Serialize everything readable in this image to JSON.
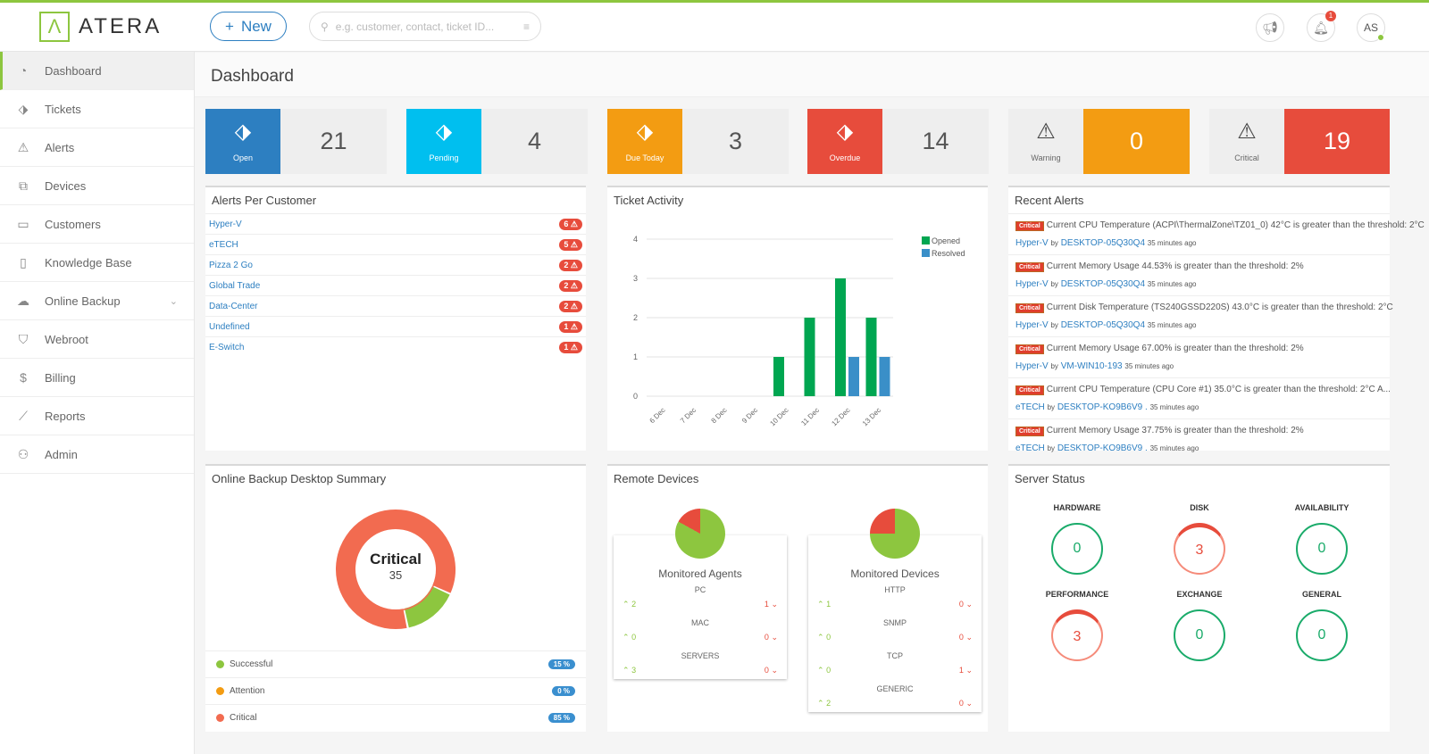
{
  "app": {
    "logo": "ATERA",
    "new_label": "New",
    "search_placeholder": "e.g. customer, contact, ticket ID...",
    "notifications": "1",
    "avatar": "AS"
  },
  "sidebar": {
    "items": [
      {
        "label": "Dashboard",
        "icon": "dashboard-icon"
      },
      {
        "label": "Tickets",
        "icon": "tag-icon"
      },
      {
        "label": "Alerts",
        "icon": "warning-icon"
      },
      {
        "label": "Devices",
        "icon": "devices-icon"
      },
      {
        "label": "Customers",
        "icon": "briefcase-icon"
      },
      {
        "label": "Knowledge Base",
        "icon": "book-icon"
      },
      {
        "label": "Online Backup",
        "icon": "cloud-icon"
      },
      {
        "label": "Webroot",
        "icon": "shield-icon"
      },
      {
        "label": "Billing",
        "icon": "dollar-icon"
      },
      {
        "label": "Reports",
        "icon": "chart-icon"
      },
      {
        "label": "Admin",
        "icon": "user-gear-icon"
      }
    ]
  },
  "page_title": "Dashboard",
  "stats": [
    {
      "label": "Open",
      "value": "21",
      "color": "#2d7fc1"
    },
    {
      "label": "Pending",
      "value": "4",
      "color": "#00bfef"
    },
    {
      "label": "Due Today",
      "value": "3",
      "color": "#f39c12"
    },
    {
      "label": "Overdue",
      "value": "14",
      "color": "#e74c3c"
    },
    {
      "label": "Warning",
      "value": "0",
      "color": "#f39c12"
    },
    {
      "label": "Critical",
      "value": "19",
      "color": "#e74c3c"
    }
  ],
  "alerts_per_customer": {
    "title": "Alerts Per Customer",
    "rows": [
      {
        "name": "Hyper-V",
        "count": "6"
      },
      {
        "name": "eTECH",
        "count": "5"
      },
      {
        "name": "Pizza 2 Go",
        "count": "2"
      },
      {
        "name": "Global Trade",
        "count": "2"
      },
      {
        "name": "Data-Center",
        "count": "2"
      },
      {
        "name": "Undefined",
        "count": "1"
      },
      {
        "name": "E-Switch",
        "count": "1"
      }
    ]
  },
  "chart_data": {
    "type": "bar",
    "title": "Ticket Activity",
    "categories": [
      "6 Dec",
      "7 Dec",
      "8 Dec",
      "9 Dec",
      "10 Dec",
      "11 Dec",
      "12 Dec",
      "13 Dec"
    ],
    "series": [
      {
        "name": "Opened",
        "color": "#00a651",
        "values": [
          0,
          0,
          0,
          0,
          1,
          2,
          3,
          2
        ]
      },
      {
        "name": "Resolved",
        "color": "#3a8fc8",
        "values": [
          0,
          0,
          0,
          0,
          0,
          0,
          1,
          1
        ]
      }
    ],
    "ylim": [
      0,
      4
    ],
    "yticks": [
      "0",
      "1",
      "2",
      "3",
      "4"
    ],
    "grid": true,
    "legend": "top-right"
  },
  "recent_alerts": {
    "title": "Recent Alerts",
    "badge": "Critical",
    "by": "by",
    "items": [
      {
        "text": "Current CPU Temperature (ACPI\\ThermalZone\\TZ01_0) 42°C is greater than the threshold: 2°C",
        "customer": "Hyper-V",
        "device": "DESKTOP-05Q30Q4",
        "time": "35 minutes ago"
      },
      {
        "text": "Current Memory Usage 44.53% is greater than the threshold: 2%",
        "customer": "Hyper-V",
        "device": "DESKTOP-05Q30Q4",
        "time": "35 minutes ago"
      },
      {
        "text": "Current Disk Temperature (TS240GSSD220S) 43.0°C is greater than the threshold: 2°C",
        "customer": "Hyper-V",
        "device": "DESKTOP-05Q30Q4",
        "time": "35 minutes ago"
      },
      {
        "text": "Current Memory Usage 67.00% is greater than the threshold: 2%",
        "customer": "Hyper-V",
        "device": "VM-WIN10-193",
        "time": "35 minutes ago"
      },
      {
        "text": "Current CPU Temperature (CPU Core #1) 35.0°C is greater than the threshold: 2°C A...",
        "customer": "eTECH",
        "device": "DESKTOP-KO9B6V9 .",
        "time": "35 minutes ago"
      },
      {
        "text": "Current Memory Usage 37.75% is greater than the threshold: 2%",
        "customer": "eTECH",
        "device": "DESKTOP-KO9B6V9 .",
        "time": "35 minutes ago"
      }
    ]
  },
  "backup": {
    "title": "Online Backup Desktop Summary",
    "center_label": "Critical",
    "center_value": "35",
    "legend": [
      {
        "label": "Successful",
        "pct": "15 %",
        "color": "#8dc63f",
        "value": 15
      },
      {
        "label": "Attention",
        "pct": "0 %",
        "color": "#f39c12",
        "value": 0
      },
      {
        "label": "Critical",
        "pct": "85 %",
        "color": "#f26b50",
        "value": 85
      }
    ]
  },
  "remote": {
    "title": "Remote Devices",
    "cards": [
      {
        "title": "Monitored Agents",
        "rows": [
          {
            "name": "PC",
            "up": "2",
            "down": "1"
          },
          {
            "name": "MAC",
            "up": "0",
            "down": "0"
          },
          {
            "name": "SERVERS",
            "up": "3",
            "down": "0"
          }
        ]
      },
      {
        "title": "Monitored Devices",
        "rows": [
          {
            "name": "HTTP",
            "up": "1",
            "down": "0"
          },
          {
            "name": "SNMP",
            "up": "0",
            "down": "0"
          },
          {
            "name": "TCP",
            "up": "0",
            "down": "1"
          },
          {
            "name": "GENERIC",
            "up": "2",
            "down": "0"
          }
        ]
      }
    ]
  },
  "server_status": {
    "title": "Server Status",
    "items": [
      {
        "name": "HARDWARE",
        "value": "0"
      },
      {
        "name": "DISK",
        "value": "3"
      },
      {
        "name": "AVAILABILITY",
        "value": "0"
      },
      {
        "name": "PERFORMANCE",
        "value": "3"
      },
      {
        "name": "EXCHANGE",
        "value": "0"
      },
      {
        "name": "GENERAL",
        "value": "0"
      }
    ]
  }
}
